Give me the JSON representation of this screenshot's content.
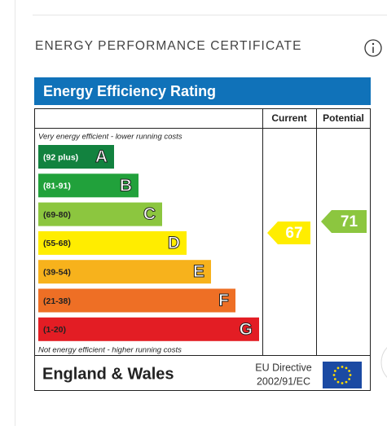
{
  "header": {
    "title": "ENERGY PERFORMANCE CERTIFICATE"
  },
  "epc": {
    "title": "Energy Efficiency Rating",
    "columns": [
      "Current",
      "Potential"
    ],
    "top_note": "Very energy efficient - lower running costs",
    "bottom_note": "Not energy efficient - higher running costs",
    "bands": [
      {
        "range": "(92 plus)",
        "letter": "A",
        "color": "#12823f"
      },
      {
        "range": "(81-91)",
        "letter": "B",
        "color": "#21a13b"
      },
      {
        "range": "(69-80)",
        "letter": "C",
        "color": "#8cc63f"
      },
      {
        "range": "(55-68)",
        "letter": "D",
        "color": "#ffed00"
      },
      {
        "range": "(39-54)",
        "letter": "E",
        "color": "#f7b21c"
      },
      {
        "range": "(21-38)",
        "letter": "F",
        "color": "#ee6f25"
      },
      {
        "range": "(1-20)",
        "letter": "G",
        "color": "#e31d24"
      }
    ],
    "current": {
      "value": "67",
      "color": "#ffed00"
    },
    "potential": {
      "value": "71",
      "color": "#8cc63f"
    },
    "footer": {
      "region": "England & Wales",
      "directive": [
        "EU Directive",
        "2002/91/EC"
      ]
    }
  }
}
